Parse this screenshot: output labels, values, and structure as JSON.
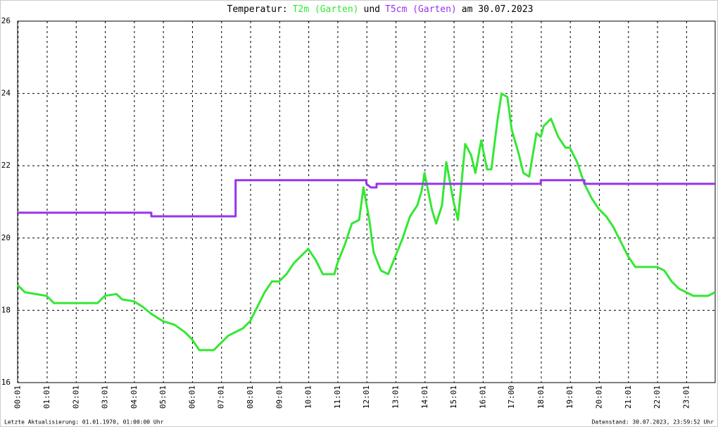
{
  "chart_data": {
    "type": "line",
    "title_prefix": "Temperatur:",
    "title_join": "und",
    "title_suffix": "am 30.07.2023",
    "footer_left": "Letzte Aktualisierung: 01.01.1970, 01:00:00 Uhr",
    "footer_right": "Datenstand: 30.07.2023, 23:59:52 Uhr",
    "xlim": [
      0,
      24
    ],
    "xticks": [
      {
        "value": 0.0167,
        "label": "00:01"
      },
      {
        "value": 1.0167,
        "label": "01:01"
      },
      {
        "value": 2.0167,
        "label": "02:01"
      },
      {
        "value": 3.0167,
        "label": "03:01"
      },
      {
        "value": 4.0167,
        "label": "04:01"
      },
      {
        "value": 5.0167,
        "label": "05:01"
      },
      {
        "value": 6.0167,
        "label": "06:01"
      },
      {
        "value": 7.0167,
        "label": "07:01"
      },
      {
        "value": 8.0167,
        "label": "08:01"
      },
      {
        "value": 9.0167,
        "label": "09:01"
      },
      {
        "value": 10.0167,
        "label": "10:01"
      },
      {
        "value": 11.0167,
        "label": "11:01"
      },
      {
        "value": 12.0167,
        "label": "12:01"
      },
      {
        "value": 13.0167,
        "label": "13:01"
      },
      {
        "value": 14.0167,
        "label": "14:01"
      },
      {
        "value": 15.0167,
        "label": "15:01"
      },
      {
        "value": 16.0167,
        "label": "16:01"
      },
      {
        "value": 17.0,
        "label": "17:00"
      },
      {
        "value": 18.0167,
        "label": "18:01"
      },
      {
        "value": 19.0167,
        "label": "19:01"
      },
      {
        "value": 20.0167,
        "label": "20:01"
      },
      {
        "value": 21.0167,
        "label": "21:01"
      },
      {
        "value": 22.0167,
        "label": "22:01"
      },
      {
        "value": 23.0167,
        "label": "23:01"
      }
    ],
    "ylim": [
      16,
      26
    ],
    "yticks": [
      16,
      18,
      20,
      22,
      24,
      26
    ],
    "grid": true,
    "series": [
      {
        "name": "T2m (Garten)",
        "color": "#33e833",
        "x": [
          0,
          0.25,
          1.0,
          1.25,
          2.0,
          2.75,
          3.0,
          3.4,
          3.6,
          4.0,
          4.3,
          4.6,
          5.0,
          5.4,
          5.75,
          6.0,
          6.25,
          6.75,
          7.0,
          7.25,
          7.5,
          7.75,
          8.0,
          8.25,
          8.5,
          8.75,
          9.0,
          9.25,
          9.5,
          9.75,
          10.0,
          10.25,
          10.5,
          10.9,
          11.0,
          11.25,
          11.5,
          11.75,
          11.9,
          12.1,
          12.25,
          12.5,
          12.75,
          13.0,
          13.25,
          13.5,
          13.75,
          13.9,
          14.0,
          14.25,
          14.4,
          14.6,
          14.75,
          15.0,
          15.15,
          15.4,
          15.6,
          15.75,
          15.95,
          16.15,
          16.3,
          16.5,
          16.65,
          16.85,
          17.0,
          17.25,
          17.4,
          17.6,
          17.85,
          18.0,
          18.1,
          18.35,
          18.6,
          18.85,
          19.0,
          19.25,
          19.5,
          19.75,
          20.0,
          20.25,
          20.5,
          20.75,
          21.0,
          21.25,
          21.5,
          22.0,
          22.25,
          22.5,
          22.75,
          23.0,
          23.25,
          23.75,
          24.0
        ],
        "values": [
          18.7,
          18.5,
          18.4,
          18.2,
          18.2,
          18.2,
          18.4,
          18.45,
          18.3,
          18.25,
          18.1,
          17.9,
          17.7,
          17.6,
          17.4,
          17.2,
          16.9,
          16.9,
          17.1,
          17.3,
          17.4,
          17.5,
          17.7,
          18.1,
          18.5,
          18.8,
          18.8,
          19.0,
          19.3,
          19.5,
          19.7,
          19.4,
          19.0,
          19.0,
          19.3,
          19.8,
          20.4,
          20.5,
          21.4,
          20.5,
          19.6,
          19.1,
          19.0,
          19.5,
          20.0,
          20.6,
          20.9,
          21.3,
          21.8,
          20.8,
          20.4,
          20.9,
          22.1,
          21.0,
          20.5,
          22.6,
          22.3,
          21.8,
          22.7,
          21.9,
          21.9,
          23.2,
          24.0,
          23.9,
          23.0,
          22.3,
          21.8,
          21.7,
          22.9,
          22.8,
          23.1,
          23.3,
          22.8,
          22.5,
          22.5,
          22.1,
          21.5,
          21.1,
          20.8,
          20.6,
          20.3,
          19.9,
          19.5,
          19.2,
          19.2,
          19.2,
          19.1,
          18.8,
          18.6,
          18.5,
          18.4,
          18.4,
          18.5
        ]
      },
      {
        "name": "T5cm (Garten)",
        "color": "#9933ee",
        "x": [
          0,
          4.6,
          4.6,
          7.5,
          7.5,
          12.0,
          12.0,
          12.15,
          12.35,
          12.35,
          18.0,
          18.0,
          19.5,
          19.5,
          24.0
        ],
        "values": [
          20.7,
          20.7,
          20.6,
          20.6,
          21.6,
          21.6,
          21.5,
          21.4,
          21.4,
          21.5,
          21.5,
          21.6,
          21.6,
          21.5,
          21.5
        ]
      }
    ]
  }
}
